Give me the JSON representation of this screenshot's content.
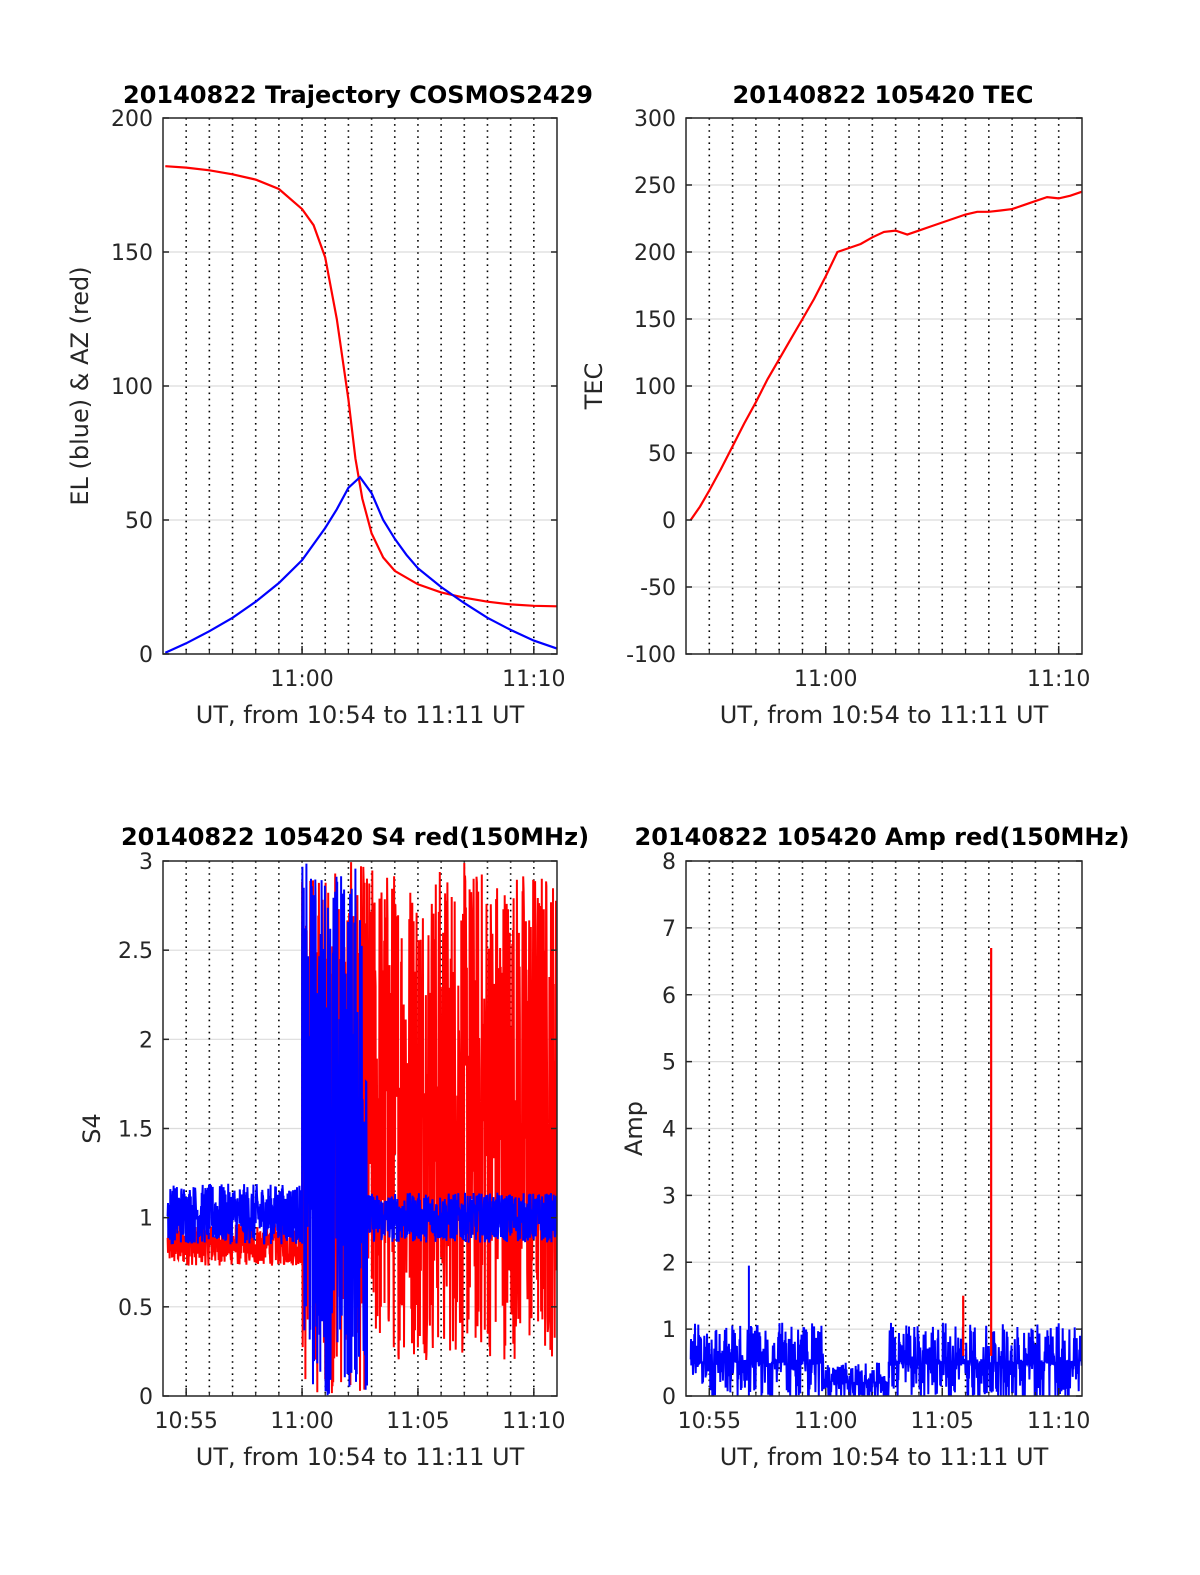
{
  "chart_data": [
    {
      "type": "line",
      "title": "20140822 Trajectory COSMOS2429",
      "xlabel": "UT, from 10:54 to 11:11 UT",
      "ylabel": "EL (blue) & AZ (red)",
      "xlim_minutes": [
        54,
        71
      ],
      "ylim": [
        0,
        200
      ],
      "yticks": [
        0,
        50,
        100,
        150,
        200
      ],
      "xticks": [
        {
          "value": 60,
          "label": "11:00"
        },
        {
          "value": 70,
          "label": "11:10"
        }
      ],
      "minor_xticks": [
        55,
        56,
        57,
        58,
        59,
        60,
        61,
        62,
        63,
        64,
        65,
        66,
        67,
        68,
        69,
        70
      ],
      "grid": true,
      "series": [
        {
          "color": "#ff0000",
          "x": [
            54.1,
            55,
            56,
            57,
            58,
            59,
            60,
            60.5,
            61,
            61.5,
            62,
            62.3,
            62.6,
            63,
            63.5,
            64,
            65,
            66,
            67,
            68,
            69,
            70,
            71
          ],
          "y": [
            182,
            181.5,
            180.5,
            179,
            177,
            173.5,
            166,
            160,
            148,
            125,
            95,
            73,
            58,
            45,
            36,
            31,
            26,
            23,
            21,
            19.5,
            18.5,
            18,
            17.8
          ]
        },
        {
          "color": "#0000ff",
          "x": [
            54.1,
            55,
            56,
            57,
            58,
            59,
            60,
            61,
            61.5,
            62,
            62.5,
            63,
            63.5,
            64,
            64.5,
            65,
            66,
            67,
            68,
            69,
            70,
            71
          ],
          "y": [
            0.5,
            4,
            8.5,
            13.5,
            19.5,
            26.5,
            35,
            47,
            54,
            62,
            66,
            60,
            50,
            43,
            37,
            32,
            25,
            19,
            13.5,
            9,
            5,
            2
          ]
        }
      ]
    },
    {
      "type": "line",
      "title": "20140822 105420 TEC",
      "xlabel": "UT, from 10:54 to 11:11 UT",
      "ylabel": "TEC",
      "xlim_minutes": [
        54,
        71
      ],
      "ylim": [
        -100,
        300
      ],
      "yticks": [
        -100,
        -50,
        0,
        50,
        100,
        150,
        200,
        250,
        300
      ],
      "xticks": [
        {
          "value": 60,
          "label": "11:00"
        },
        {
          "value": 70,
          "label": "11:10"
        }
      ],
      "minor_xticks": [
        55,
        56,
        57,
        58,
        59,
        60,
        61,
        62,
        63,
        64,
        65,
        66,
        67,
        68,
        69,
        70
      ],
      "grid": true,
      "series": [
        {
          "color": "#ff0000",
          "x": [
            54.2,
            54.6,
            55,
            55.5,
            56,
            56.5,
            57,
            57.5,
            58,
            58.5,
            59,
            59.5,
            60,
            60.5,
            61,
            61.5,
            62,
            62.5,
            63,
            63.5,
            64,
            64.5,
            65,
            65.5,
            66,
            66.5,
            67,
            67.5,
            68,
            68.5,
            69,
            69.5,
            70,
            70.5,
            71
          ],
          "y": [
            0,
            10,
            22,
            38,
            55,
            72,
            88,
            105,
            120,
            135,
            150,
            165,
            182,
            200,
            203,
            206,
            211,
            215,
            216,
            213,
            216,
            219,
            222,
            225,
            228,
            230,
            230,
            231,
            232,
            235,
            238,
            241,
            240,
            242,
            245
          ]
        }
      ]
    },
    {
      "type": "line",
      "title": "20140822 105420 S4 red(150MHz)",
      "xlabel": "UT, from 10:54 to 11:11 UT",
      "ylabel": "S4",
      "xlim_minutes": [
        54,
        71
      ],
      "ylim": [
        0,
        3
      ],
      "yticks": [
        0,
        0.5,
        1,
        1.5,
        2,
        2.5,
        3
      ],
      "xticks": [
        {
          "value": 55,
          "label": "10:55"
        },
        {
          "value": 60,
          "label": "11:00"
        },
        {
          "value": 65,
          "label": "11:05"
        },
        {
          "value": 70,
          "label": "11:10"
        }
      ],
      "minor_xticks": [
        55,
        56,
        57,
        58,
        59,
        60,
        61,
        62,
        63,
        64,
        65,
        66,
        67,
        68,
        69,
        70
      ],
      "grid": true,
      "series": [
        {
          "color": "#ff0000",
          "mode": "noise",
          "segments": [
            {
              "x0": 54.2,
              "x1": 60.0,
              "center": 0.85,
              "amp": 0.12
            },
            {
              "x0": 60.0,
              "x1": 62.8,
              "center": 1.5,
              "amp": 1.5
            },
            {
              "x0": 62.8,
              "x1": 71.0,
              "center": 1.6,
              "amp": 1.4
            }
          ]
        },
        {
          "color": "#0000ff",
          "mode": "noise",
          "segments": [
            {
              "x0": 54.2,
              "x1": 60.0,
              "center": 1.02,
              "amp": 0.17
            },
            {
              "x0": 60.0,
              "x1": 62.8,
              "center": 1.5,
              "amp": 1.5
            },
            {
              "x0": 62.8,
              "x1": 71.0,
              "center": 1.0,
              "amp": 0.14
            }
          ]
        }
      ]
    },
    {
      "type": "line",
      "title": "20140822 105420 Amp red(150MHz)",
      "xlabel": "UT, from 10:54 to 11:11 UT",
      "ylabel": "Amp",
      "xlim_minutes": [
        54,
        71
      ],
      "ylim": [
        0,
        8
      ],
      "yticks": [
        0,
        1,
        2,
        3,
        4,
        5,
        6,
        7,
        8
      ],
      "xticks": [
        {
          "value": 55,
          "label": "10:55"
        },
        {
          "value": 60,
          "label": "11:00"
        },
        {
          "value": 65,
          "label": "11:05"
        },
        {
          "value": 70,
          "label": "11:10"
        }
      ],
      "minor_xticks": [
        55,
        56,
        57,
        58,
        59,
        60,
        61,
        62,
        63,
        64,
        65,
        66,
        67,
        68,
        69,
        70
      ],
      "grid": true,
      "series": [
        {
          "color": "#ff0000",
          "mode": "spikes",
          "points": [
            {
              "x": 65.9,
              "y": 1.5
            },
            {
              "x": 67.1,
              "y": 6.7
            }
          ]
        },
        {
          "color": "#0000ff",
          "mode": "noise",
          "segments": [
            {
              "x0": 54.2,
              "x1": 59.9,
              "center": 0.5,
              "amp": 0.5
            },
            {
              "x0": 59.9,
              "x1": 62.7,
              "center": 0.2,
              "amp": 0.25
            },
            {
              "x0": 62.7,
              "x1": 71.0,
              "center": 0.5,
              "amp": 0.5
            }
          ],
          "extra_spikes": [
            {
              "x": 56.7,
              "y": 1.95
            }
          ]
        }
      ]
    }
  ]
}
